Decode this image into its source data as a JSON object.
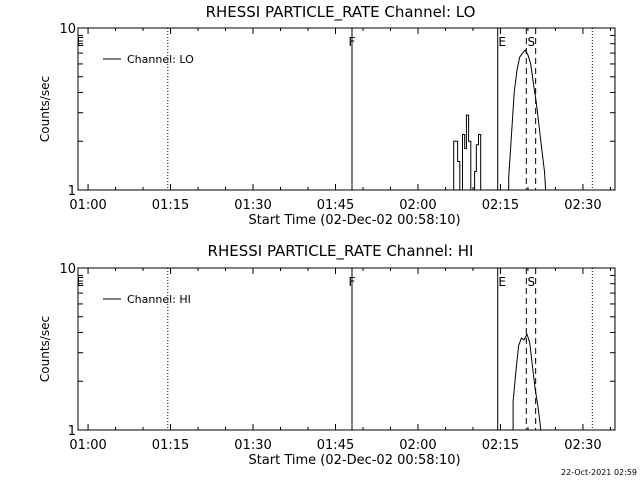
{
  "footer": {
    "timestamp": "22-Oct-2021 02:59"
  },
  "chart_data": [
    {
      "type": "line",
      "title": "RHESSI PARTICLE_RATE Channel: LO",
      "xlabel": "Start Time (02-Dec-02 00:58:10)",
      "ylabel": "Counts/sec",
      "yscale": "log",
      "xlim_minutes": [
        58.17,
        155.83
      ],
      "ylim": [
        1,
        10
      ],
      "x_tick_minutes": [
        60,
        75,
        90,
        105,
        120,
        135,
        150
      ],
      "x_tick_labels": [
        "01:00",
        "01:15",
        "01:30",
        "01:45",
        "02:00",
        "02:15",
        "02:30"
      ],
      "y_tick_values": [
        10,
        1
      ],
      "y_tick_labels": [
        "10",
        "1"
      ],
      "legend": "Channel: LO",
      "markers": [
        {
          "label": "E",
          "minute": 58.6,
          "style": "none"
        },
        {
          "label": "",
          "minute": 74.5,
          "style": "dotted"
        },
        {
          "label": "F",
          "minute": 108.0,
          "style": "solid"
        },
        {
          "label": "",
          "minute": 134.5,
          "style": "solid"
        },
        {
          "label": "E",
          "minute": 135.3,
          "style": "none"
        },
        {
          "label": "S",
          "minute": 140.6,
          "style": "none"
        },
        {
          "label": "",
          "minute": 139.7,
          "style": "dashed"
        },
        {
          "label": "",
          "minute": 141.4,
          "style": "dashed"
        },
        {
          "label": "",
          "minute": 151.7,
          "style": "dotted"
        }
      ],
      "series": [
        {
          "name": "Channel: LO",
          "segments": [
            [
              [
                126.5,
                1
              ],
              [
                126.5,
                2
              ],
              [
                127.2,
                2
              ],
              [
                127.2,
                1.5
              ],
              [
                127.6,
                1.5
              ],
              [
                127.6,
                1
              ],
              [
                128.1,
                1
              ],
              [
                128.1,
                2.2
              ],
              [
                128.5,
                2.2
              ],
              [
                128.5,
                1.8
              ],
              [
                128.8,
                1.8
              ],
              [
                128.8,
                2.9
              ],
              [
                129.2,
                2.9
              ],
              [
                129.2,
                2
              ],
              [
                129.6,
                2
              ],
              [
                129.6,
                1
              ]
            ],
            [
              [
                130.3,
                1
              ],
              [
                130.3,
                1.3
              ],
              [
                130.6,
                1.3
              ],
              [
                130.6,
                1.9
              ],
              [
                131.0,
                1.9
              ],
              [
                131.0,
                2.2
              ],
              [
                131.4,
                2.2
              ],
              [
                131.4,
                1
              ]
            ],
            [
              [
                136.5,
                1
              ],
              [
                136.5,
                1.2
              ],
              [
                137.0,
                2.2
              ],
              [
                137.5,
                4
              ],
              [
                138.0,
                5.5
              ],
              [
                138.5,
                6.6
              ],
              [
                139.0,
                7
              ],
              [
                139.5,
                7.3
              ],
              [
                140.0,
                6.8
              ],
              [
                140.5,
                6
              ],
              [
                141.0,
                4.5
              ],
              [
                141.5,
                3.5
              ],
              [
                142.0,
                2.5
              ],
              [
                142.5,
                1.8
              ],
              [
                143.0,
                1.3
              ],
              [
                143.2,
                1
              ]
            ]
          ]
        }
      ]
    },
    {
      "type": "line",
      "title": "RHESSI PARTICLE_RATE Channel: HI",
      "xlabel": "Start Time (02-Dec-02 00:58:10)",
      "ylabel": "Counts/sec",
      "yscale": "log",
      "xlim_minutes": [
        58.17,
        155.83
      ],
      "ylim": [
        1,
        10
      ],
      "x_tick_minutes": [
        60,
        75,
        90,
        105,
        120,
        135,
        150
      ],
      "x_tick_labels": [
        "01:00",
        "01:15",
        "01:30",
        "01:45",
        "02:00",
        "02:15",
        "02:30"
      ],
      "y_tick_values": [
        10,
        1
      ],
      "y_tick_labels": [
        "10",
        "1"
      ],
      "legend": "Channel: HI",
      "markers": [
        {
          "label": "E",
          "minute": 58.6,
          "style": "none"
        },
        {
          "label": "",
          "minute": 74.5,
          "style": "dotted"
        },
        {
          "label": "F",
          "minute": 108.0,
          "style": "solid"
        },
        {
          "label": "",
          "minute": 134.5,
          "style": "solid"
        },
        {
          "label": "E",
          "minute": 135.3,
          "style": "none"
        },
        {
          "label": "S",
          "minute": 140.6,
          "style": "none"
        },
        {
          "label": "",
          "minute": 139.7,
          "style": "dashed"
        },
        {
          "label": "",
          "minute": 141.4,
          "style": "dashed"
        },
        {
          "label": "",
          "minute": 151.7,
          "style": "dotted"
        }
      ],
      "series": [
        {
          "name": "Channel: HI",
          "segments": [
            [
              [
                137.3,
                1
              ],
              [
                137.3,
                1.5
              ],
              [
                137.8,
                2.3
              ],
              [
                138.3,
                3.3
              ],
              [
                138.8,
                3.7
              ],
              [
                139.3,
                3.6
              ],
              [
                139.8,
                3.9
              ],
              [
                140.3,
                3.5
              ],
              [
                140.8,
                2.5
              ],
              [
                141.3,
                1.8
              ],
              [
                141.8,
                1.4
              ],
              [
                142.2,
                1.1
              ],
              [
                142.3,
                1
              ]
            ]
          ]
        }
      ]
    }
  ]
}
